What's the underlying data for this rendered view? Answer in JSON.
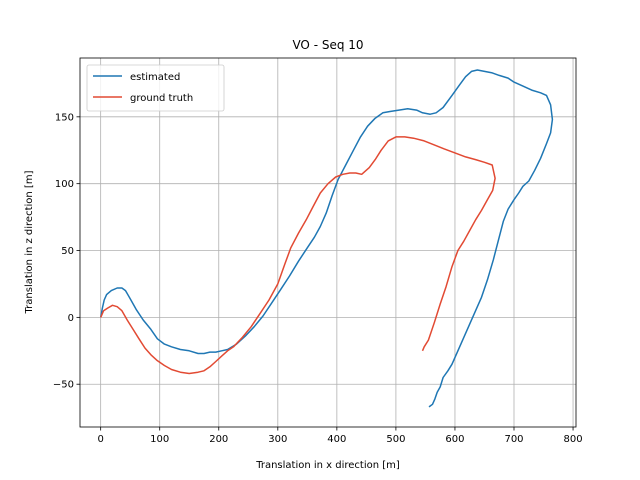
{
  "chart_data": {
    "type": "line",
    "title": "VO - Seq 10",
    "xlabel": "Translation in x direction [m]",
    "ylabel": "Translation in z direction [m]",
    "xlim": [
      -35,
      805
    ],
    "ylim": [
      -82,
      194
    ],
    "xticks": [
      0,
      100,
      200,
      300,
      400,
      500,
      600,
      700,
      800
    ],
    "yticks": [
      -50,
      0,
      50,
      100,
      150
    ],
    "grid": true,
    "legend_position": "top-left",
    "series": [
      {
        "name": "estimated",
        "color": "#1f77b4",
        "points": [
          [
            0,
            0
          ],
          [
            3,
            7
          ],
          [
            6,
            13
          ],
          [
            10,
            17
          ],
          [
            18,
            20
          ],
          [
            28,
            22
          ],
          [
            36,
            22
          ],
          [
            42,
            20
          ],
          [
            50,
            14
          ],
          [
            60,
            6
          ],
          [
            72,
            -2
          ],
          [
            85,
            -9
          ],
          [
            96,
            -16
          ],
          [
            108,
            -20
          ],
          [
            120,
            -22
          ],
          [
            135,
            -24
          ],
          [
            150,
            -25
          ],
          [
            165,
            -27
          ],
          [
            175,
            -27
          ],
          [
            185,
            -26
          ],
          [
            195,
            -26
          ],
          [
            205,
            -25
          ],
          [
            215,
            -24
          ],
          [
            230,
            -20
          ],
          [
            245,
            -14
          ],
          [
            260,
            -7
          ],
          [
            275,
            1
          ],
          [
            290,
            11
          ],
          [
            305,
            21
          ],
          [
            320,
            31
          ],
          [
            335,
            42
          ],
          [
            350,
            52
          ],
          [
            362,
            60
          ],
          [
            372,
            68
          ],
          [
            382,
            78
          ],
          [
            392,
            91
          ],
          [
            402,
            103
          ],
          [
            415,
            114
          ],
          [
            428,
            125
          ],
          [
            440,
            135
          ],
          [
            452,
            143
          ],
          [
            465,
            149
          ],
          [
            478,
            153
          ],
          [
            490,
            154
          ],
          [
            505,
            155
          ],
          [
            520,
            156
          ],
          [
            535,
            155
          ],
          [
            545,
            153
          ],
          [
            558,
            152
          ],
          [
            568,
            153
          ],
          [
            580,
            157
          ],
          [
            595,
            166
          ],
          [
            608,
            174
          ],
          [
            618,
            180
          ],
          [
            628,
            184
          ],
          [
            638,
            185
          ],
          [
            650,
            184
          ],
          [
            662,
            183
          ],
          [
            675,
            181
          ],
          [
            690,
            179
          ],
          [
            700,
            176
          ],
          [
            715,
            173
          ],
          [
            730,
            170
          ],
          [
            745,
            168
          ],
          [
            755,
            166
          ],
          [
            762,
            159
          ],
          [
            765,
            148
          ],
          [
            762,
            138
          ],
          [
            755,
            130
          ],
          [
            745,
            119
          ],
          [
            735,
            110
          ],
          [
            725,
            102
          ],
          [
            715,
            98
          ],
          [
            708,
            93
          ],
          [
            700,
            88
          ],
          [
            690,
            81
          ],
          [
            682,
            72
          ],
          [
            675,
            60
          ],
          [
            665,
            43
          ],
          [
            655,
            28
          ],
          [
            645,
            15
          ],
          [
            635,
            5
          ],
          [
            625,
            -5
          ],
          [
            615,
            -15
          ],
          [
            605,
            -25
          ],
          [
            595,
            -35
          ],
          [
            588,
            -40
          ],
          [
            580,
            -45
          ],
          [
            575,
            -52
          ],
          [
            570,
            -56
          ],
          [
            566,
            -61
          ],
          [
            562,
            -65
          ],
          [
            556,
            -67
          ]
        ]
      },
      {
        "name": "ground truth",
        "color": "#e24a33",
        "points": [
          [
            0,
            0
          ],
          [
            5,
            5
          ],
          [
            12,
            7
          ],
          [
            20,
            9
          ],
          [
            28,
            8
          ],
          [
            36,
            5
          ],
          [
            45,
            -2
          ],
          [
            55,
            -9
          ],
          [
            65,
            -16
          ],
          [
            75,
            -23
          ],
          [
            85,
            -28
          ],
          [
            95,
            -32
          ],
          [
            108,
            -36
          ],
          [
            120,
            -39
          ],
          [
            135,
            -41
          ],
          [
            150,
            -42
          ],
          [
            165,
            -41
          ],
          [
            175,
            -40
          ],
          [
            185,
            -37
          ],
          [
            195,
            -33
          ],
          [
            205,
            -29
          ],
          [
            215,
            -25
          ],
          [
            225,
            -22
          ],
          [
            240,
            -15
          ],
          [
            255,
            -7
          ],
          [
            270,
            3
          ],
          [
            285,
            13
          ],
          [
            300,
            25
          ],
          [
            312,
            40
          ],
          [
            322,
            52
          ],
          [
            335,
            63
          ],
          [
            348,
            73
          ],
          [
            360,
            83
          ],
          [
            372,
            93
          ],
          [
            385,
            100
          ],
          [
            398,
            105
          ],
          [
            410,
            107
          ],
          [
            422,
            108
          ],
          [
            432,
            108
          ],
          [
            442,
            107
          ],
          [
            455,
            112
          ],
          [
            465,
            118
          ],
          [
            475,
            125
          ],
          [
            487,
            132
          ],
          [
            500,
            135
          ],
          [
            515,
            135
          ],
          [
            530,
            134
          ],
          [
            548,
            132
          ],
          [
            565,
            129
          ],
          [
            582,
            126
          ],
          [
            600,
            123
          ],
          [
            618,
            120
          ],
          [
            635,
            118
          ],
          [
            650,
            116
          ],
          [
            663,
            114
          ],
          [
            668,
            104
          ],
          [
            664,
            95
          ],
          [
            655,
            88
          ],
          [
            645,
            80
          ],
          [
            635,
            73
          ],
          [
            625,
            65
          ],
          [
            615,
            57
          ],
          [
            605,
            50
          ],
          [
            595,
            38
          ],
          [
            585,
            23
          ],
          [
            575,
            10
          ],
          [
            565,
            -4
          ],
          [
            555,
            -17
          ],
          [
            548,
            -22
          ],
          [
            545,
            -25
          ]
        ]
      }
    ]
  }
}
